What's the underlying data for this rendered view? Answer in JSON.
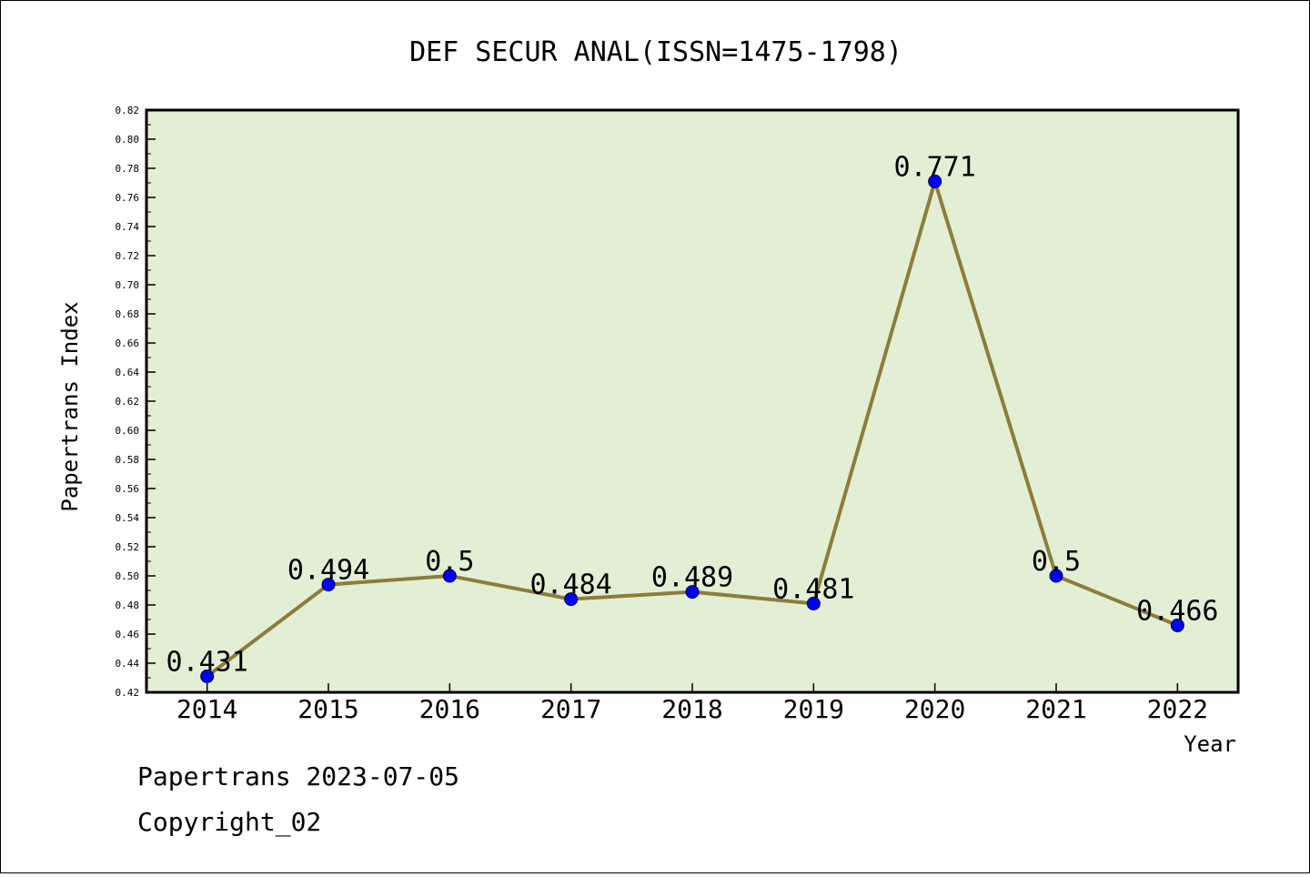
{
  "chart_data": {
    "type": "line",
    "title": "DEF SECUR ANAL(ISSN=1475-1798)",
    "xlabel": "Year",
    "ylabel": "Papertrans Index",
    "categories": [
      "2014",
      "2015",
      "2016",
      "2017",
      "2018",
      "2019",
      "2020",
      "2021",
      "2022"
    ],
    "values": [
      0.431,
      0.494,
      0.5,
      0.484,
      0.489,
      0.481,
      0.771,
      0.5,
      0.466
    ],
    "data_labels": [
      "0.431",
      "0.494",
      "0.5",
      "0.484",
      "0.489",
      "0.481",
      "0.771",
      "0.5",
      "0.466"
    ],
    "ylim": [
      0.42,
      0.82
    ],
    "yticks": [
      "0.42",
      "0.44",
      "0.46",
      "0.48",
      "0.50",
      "0.52",
      "0.54",
      "0.56",
      "0.58",
      "0.60",
      "0.62",
      "0.64",
      "0.66",
      "0.68",
      "0.70",
      "0.72",
      "0.74",
      "0.76",
      "0.78",
      "0.80",
      "0.82"
    ],
    "grid": false,
    "colors": {
      "plot_background": "#e3efd5",
      "line": "#8c7d3a",
      "marker": "#0000ff"
    }
  },
  "footer": {
    "line1": "Papertrans 2023-07-05",
    "line2": "Copyright_02"
  }
}
